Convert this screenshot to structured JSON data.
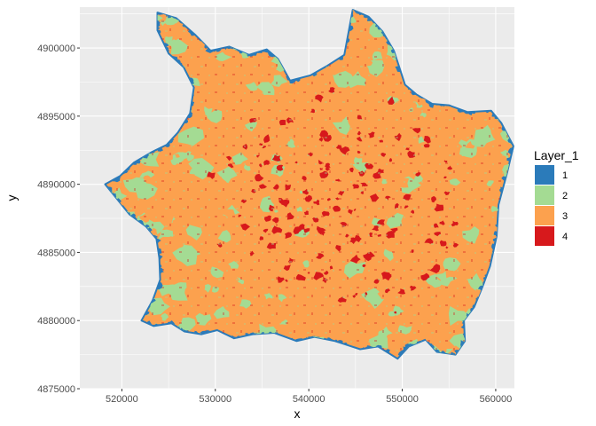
{
  "chart_data": {
    "type": "heatmap",
    "title": "",
    "xlabel": "x",
    "ylabel": "y",
    "xlim": [
      515500,
      562000
    ],
    "ylim": [
      4875000,
      4903000
    ],
    "x_ticks": [
      520000,
      530000,
      540000,
      550000,
      560000
    ],
    "y_ticks": [
      4875000,
      4880000,
      4885000,
      4890000,
      4895000,
      4900000
    ],
    "x_tick_labels": [
      "520000",
      "530000",
      "540000",
      "550000",
      "560000"
    ],
    "y_tick_labels": [
      "4875000",
      "4880000",
      "4885000",
      "4890000",
      "4895000",
      "4900000"
    ],
    "grid": true,
    "legend": {
      "title": "Layer_1",
      "placement": "right",
      "entries": [
        {
          "label": "1",
          "color": "#2B7BBA"
        },
        {
          "label": "2",
          "color": "#A4DB93"
        },
        {
          "label": "3",
          "color": "#FCA14E"
        },
        {
          "label": "4",
          "color": "#D7191C"
        }
      ]
    },
    "extent_outline": [
      [
        523800,
        4902600
      ],
      [
        525800,
        4902200
      ],
      [
        527800,
        4901000
      ],
      [
        529500,
        4899800
      ],
      [
        531500,
        4900100
      ],
      [
        533600,
        4899500
      ],
      [
        535500,
        4899900
      ],
      [
        536700,
        4899200
      ],
      [
        538000,
        4897600
      ],
      [
        540200,
        4898000
      ],
      [
        542000,
        4898700
      ],
      [
        543800,
        4899500
      ],
      [
        544700,
        4902800
      ],
      [
        546400,
        4902300
      ],
      [
        547900,
        4901200
      ],
      [
        549100,
        4899800
      ],
      [
        550300,
        4897300
      ],
      [
        551500,
        4896600
      ],
      [
        553200,
        4895900
      ],
      [
        555000,
        4895800
      ],
      [
        557000,
        4895300
      ],
      [
        559500,
        4895400
      ],
      [
        560600,
        4894500
      ],
      [
        561900,
        4892800
      ],
      [
        561200,
        4890800
      ],
      [
        560300,
        4888500
      ],
      [
        560100,
        4886200
      ],
      [
        559400,
        4884000
      ],
      [
        558600,
        4882500
      ],
      [
        557700,
        4881000
      ],
      [
        556600,
        4880000
      ],
      [
        556700,
        4878500
      ],
      [
        555700,
        4877500
      ],
      [
        553700,
        4877700
      ],
      [
        552500,
        4878600
      ],
      [
        550700,
        4878100
      ],
      [
        549500,
        4877200
      ],
      [
        547400,
        4878100
      ],
      [
        545500,
        4877900
      ],
      [
        542800,
        4878500
      ],
      [
        540600,
        4878800
      ],
      [
        538700,
        4878500
      ],
      [
        536300,
        4879100
      ],
      [
        534000,
        4879000
      ],
      [
        532000,
        4878700
      ],
      [
        530200,
        4879300
      ],
      [
        528500,
        4879000
      ],
      [
        526700,
        4879200
      ],
      [
        525300,
        4879800
      ],
      [
        523400,
        4879600
      ],
      [
        522100,
        4880000
      ],
      [
        523300,
        4881500
      ],
      [
        524100,
        4883000
      ],
      [
        524000,
        4884600
      ],
      [
        523700,
        4886000
      ],
      [
        522600,
        4886900
      ],
      [
        520800,
        4887800
      ],
      [
        519500,
        4888900
      ],
      [
        518200,
        4890000
      ],
      [
        519800,
        4890600
      ],
      [
        521300,
        4891600
      ],
      [
        523300,
        4892400
      ],
      [
        524800,
        4892900
      ],
      [
        526000,
        4893800
      ],
      [
        527300,
        4895200
      ],
      [
        527700,
        4897100
      ],
      [
        526600,
        4898600
      ],
      [
        525000,
        4899600
      ],
      [
        523800,
        4901300
      ]
    ]
  }
}
